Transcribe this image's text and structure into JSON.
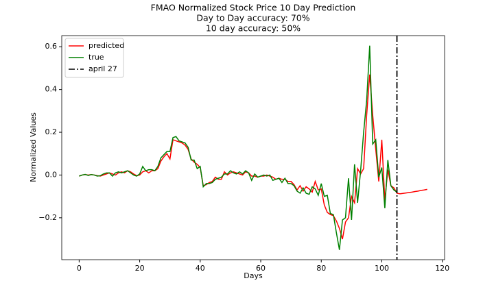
{
  "chart_data": {
    "type": "line",
    "title": [
      "FMAO Normalized Stock Price 10 Day Prediction",
      "Day to Day accuracy: 70%",
      "10 day accuracy: 50%"
    ],
    "xlabel": "Days",
    "ylabel": "Normalized Values",
    "x": [
      0,
      1,
      2,
      3,
      4,
      5,
      6,
      7,
      8,
      9,
      10,
      11,
      12,
      13,
      14,
      15,
      16,
      17,
      18,
      19,
      20,
      21,
      22,
      23,
      24,
      25,
      26,
      27,
      28,
      29,
      30,
      31,
      32,
      33,
      34,
      35,
      36,
      37,
      38,
      39,
      40,
      41,
      42,
      43,
      44,
      45,
      46,
      47,
      48,
      49,
      50,
      51,
      52,
      53,
      54,
      55,
      56,
      57,
      58,
      59,
      60,
      61,
      62,
      63,
      64,
      65,
      66,
      67,
      68,
      69,
      70,
      71,
      72,
      73,
      74,
      75,
      76,
      77,
      78,
      79,
      80,
      81,
      82,
      83,
      84,
      85,
      86,
      87,
      88,
      89,
      90,
      91,
      92,
      93,
      94,
      95,
      96,
      97,
      98,
      99,
      100,
      101,
      102,
      103,
      104,
      105,
      106,
      107,
      108,
      109,
      110,
      111,
      112,
      113,
      114,
      115
    ],
    "series": [
      {
        "name": "predicted",
        "color": "#ff0000",
        "values": [
          -0.005,
          0,
          0.002,
          0,
          0.002,
          0,
          -0.003,
          -0.005,
          0,
          0.005,
          0.01,
          0.005,
          0,
          0.01,
          0.015,
          0.01,
          0.02,
          0.015,
          0.005,
          -0.003,
          0,
          0.015,
          0.02,
          0.01,
          0.02,
          0.02,
          0.03,
          0.065,
          0.085,
          0.1,
          0.075,
          0.165,
          0.16,
          0.155,
          0.15,
          0.14,
          0.12,
          0.075,
          0.06,
          0.05,
          0.035,
          -0.05,
          -0.045,
          -0.035,
          -0.03,
          -0.01,
          -0.02,
          -0.02,
          0.015,
          0,
          0.01,
          0.015,
          0.01,
          0.005,
          0,
          0.015,
          0.01,
          -0.005,
          -0.005,
          -0.01,
          -0.005,
          -0.005,
          0,
          -0.005,
          -0.01,
          -0.02,
          -0.015,
          -0.02,
          -0.02,
          -0.03,
          -0.03,
          -0.045,
          -0.07,
          -0.05,
          -0.075,
          -0.055,
          -0.065,
          -0.08,
          -0.03,
          -0.07,
          -0.065,
          -0.14,
          -0.175,
          -0.185,
          -0.19,
          -0.215,
          -0.25,
          -0.3,
          -0.22,
          -0.2,
          -0.1,
          -0.13,
          0.03,
          0.005,
          0.03,
          0.28,
          0.47,
          0.28,
          0.12,
          -0.03,
          0.165,
          -0.12,
          0.025,
          -0.05,
          -0.06,
          -0.085,
          -0.088,
          -0.086,
          -0.084,
          -0.082,
          -0.08,
          -0.077,
          -0.075,
          -0.072,
          -0.07,
          -0.067
        ]
      },
      {
        "name": "true",
        "color": "#008000",
        "values": [
          -0.005,
          0,
          0.003,
          -0.002,
          0.002,
          0,
          -0.005,
          -0.003,
          0.005,
          0.01,
          0.01,
          -0.005,
          0.01,
          0.015,
          0.01,
          0.015,
          0.02,
          0.01,
          0,
          -0.005,
          0.005,
          0.04,
          0.02,
          0.025,
          0.025,
          0.02,
          0.04,
          0.08,
          0.095,
          0.11,
          0.11,
          0.175,
          0.18,
          0.16,
          0.155,
          0.15,
          0.13,
          0.07,
          0.07,
          0.03,
          0.04,
          -0.055,
          -0.04,
          -0.04,
          -0.035,
          -0.02,
          -0.015,
          -0.01,
          0.005,
          0.005,
          0.02,
          0.01,
          0.005,
          0.015,
          0.005,
          0.02,
          0.01,
          -0.025,
          0.005,
          -0.01,
          -0.005,
          0,
          -0.005,
          0,
          -0.025,
          -0.02,
          -0.015,
          -0.035,
          -0.015,
          -0.04,
          -0.04,
          -0.05,
          -0.075,
          -0.085,
          -0.06,
          -0.085,
          -0.09,
          -0.055,
          -0.065,
          -0.095,
          -0.04,
          -0.1,
          -0.095,
          -0.18,
          -0.185,
          -0.27,
          -0.35,
          -0.21,
          -0.2,
          -0.015,
          -0.21,
          0.05,
          -0.13,
          0.02,
          0.2,
          0.35,
          0.605,
          0.145,
          0.165,
          -0.01,
          0.035,
          -0.155,
          0.07,
          -0.05,
          -0.07,
          -0.08,
          null,
          null,
          null,
          null,
          null,
          null,
          null,
          null,
          null,
          null
        ]
      }
    ],
    "vlines": [
      {
        "name": "april 27",
        "x": 105,
        "color": "#000000",
        "style": "dashdot"
      }
    ],
    "xlim": [
      -5.75,
      120.75
    ],
    "ylim": [
      -0.396,
      0.652
    ],
    "xticks": [
      0,
      20,
      40,
      60,
      80,
      100,
      120
    ],
    "yticks": [
      {
        "value": -0.2,
        "label": "−0.2"
      },
      {
        "value": 0,
        "label": "0.0"
      },
      0.2,
      0.4,
      0.6
    ],
    "grid": false,
    "legend": "upper-left"
  }
}
